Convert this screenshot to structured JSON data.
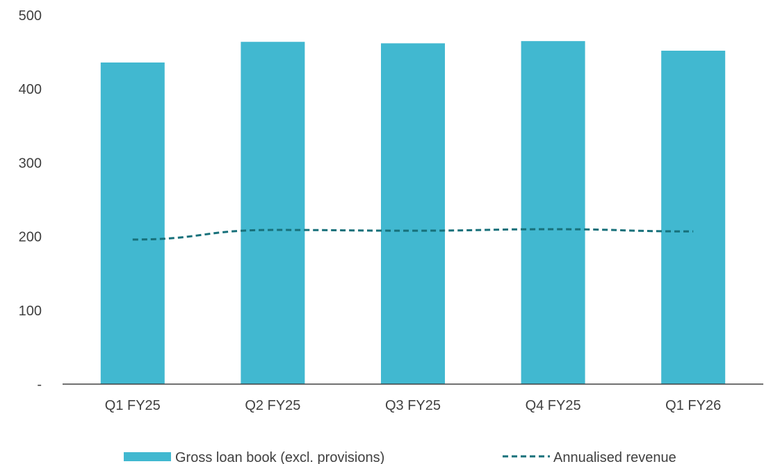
{
  "chart_data": {
    "type": "bar",
    "title": "",
    "xlabel": "",
    "ylabel": "",
    "ylim": [
      0,
      500
    ],
    "yticks": [
      0,
      100,
      200,
      300,
      400,
      500
    ],
    "ytick_labels": [
      "-",
      "100",
      "200",
      "300",
      "400",
      "500"
    ],
    "grid": false,
    "legend_position": "bottom",
    "categories": [
      "Q1 FY25",
      "Q2 FY25",
      "Q3 FY25",
      "Q4 FY25",
      "Q1 FY26"
    ],
    "series": [
      {
        "name": "Gross loan book (excl. provisions)",
        "type": "bar",
        "color": "#41b8d0",
        "values": [
          436,
          464,
          462,
          465,
          452
        ]
      },
      {
        "name": "Annualised revenue",
        "type": "line",
        "style": "dashed",
        "color": "#17707a",
        "values": [
          196,
          209,
          208,
          210,
          207
        ]
      }
    ]
  }
}
